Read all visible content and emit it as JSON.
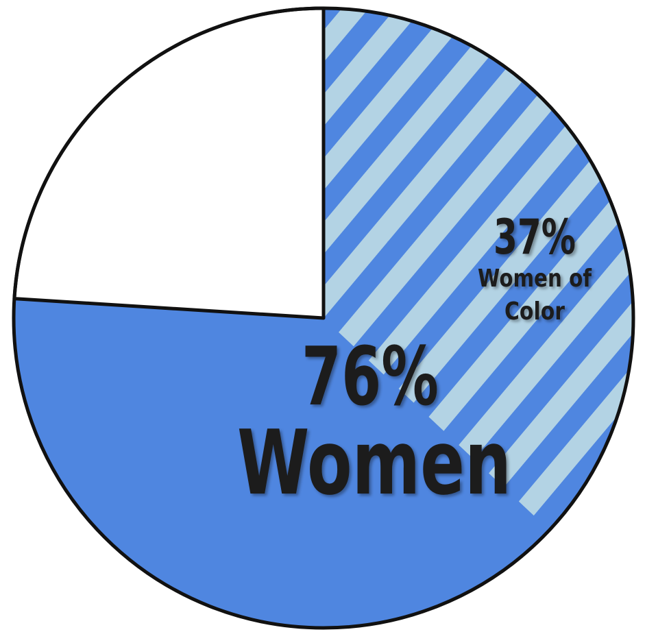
{
  "chart_data": {
    "type": "pie",
    "slices": [
      {
        "label": "Women",
        "value": 76,
        "display_value": "76%"
      },
      {
        "label": "",
        "value": 24
      }
    ],
    "subset": {
      "of": "Women",
      "label": "Women of Color",
      "value": 37,
      "display_value": "37%",
      "pattern": "diagonal-stripes"
    },
    "colors": {
      "women": "#4f86e0",
      "women_of_color_stripe_light": "#b3d3e4",
      "women_of_color_stripe_dark": "#4f86e0",
      "remainder": "#ffffff",
      "outline": "#111111",
      "text": "#1c1c1c"
    }
  },
  "labels": {
    "women_percent": "76%",
    "women_word": "Women",
    "woc_percent": "37%",
    "woc_line1": "Women of",
    "woc_line2": "Color"
  }
}
